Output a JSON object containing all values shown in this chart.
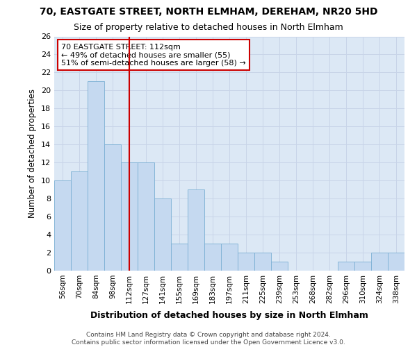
{
  "title_line1": "70, EASTGATE STREET, NORTH ELMHAM, DEREHAM, NR20 5HD",
  "title_line2": "Size of property relative to detached houses in North Elmham",
  "xlabel": "Distribution of detached houses by size in North Elmham",
  "ylabel": "Number of detached properties",
  "footer_line1": "Contains HM Land Registry data © Crown copyright and database right 2024.",
  "footer_line2": "Contains public sector information licensed under the Open Government Licence v3.0.",
  "bar_labels": [
    "56sqm",
    "70sqm",
    "84sqm",
    "98sqm",
    "112sqm",
    "127sqm",
    "141sqm",
    "155sqm",
    "169sqm",
    "183sqm",
    "197sqm",
    "211sqm",
    "225sqm",
    "239sqm",
    "253sqm",
    "268sqm",
    "282sqm",
    "296sqm",
    "310sqm",
    "324sqm",
    "338sqm"
  ],
  "bar_values": [
    10,
    11,
    21,
    14,
    12,
    12,
    8,
    3,
    9,
    3,
    3,
    2,
    2,
    1,
    0,
    0,
    0,
    1,
    1,
    2,
    2
  ],
  "bar_color": "#c5d9f0",
  "bar_edge_color": "#7bafd4",
  "marker_index": 4,
  "marker_color": "#cc0000",
  "ylim": [
    0,
    26
  ],
  "yticks": [
    0,
    2,
    4,
    6,
    8,
    10,
    12,
    14,
    16,
    18,
    20,
    22,
    24,
    26
  ],
  "annotation_box_text": "70 EASTGATE STREET: 112sqm\n← 49% of detached houses are smaller (55)\n51% of semi-detached houses are larger (58) →",
  "grid_color": "#c8d4e8",
  "plot_bg_color": "#dce8f5",
  "fig_bg_color": "#ffffff"
}
